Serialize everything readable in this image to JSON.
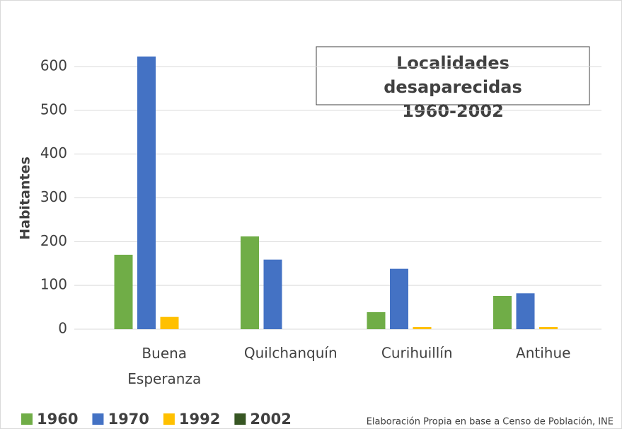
{
  "chart_data": {
    "type": "bar",
    "title": "Localidades desaparecidas 1960-2002",
    "y_label": "Habitantes",
    "source": "Elaboración Propia en base a Censo de  Población, INE",
    "categories": [
      "Buena Esperanza",
      "Quilchanquín",
      "Curihuillín",
      "Antihue"
    ],
    "series": [
      {
        "name": "1960",
        "color": "#70ad47",
        "values": [
          170,
          212,
          39,
          76
        ]
      },
      {
        "name": "1970",
        "color": "#4472c4",
        "values": [
          623,
          159,
          138,
          82
        ]
      },
      {
        "name": "1992",
        "color": "#ffc000",
        "values": [
          28,
          0,
          5,
          5
        ]
      },
      {
        "name": "2002",
        "color": "#375623",
        "values": [
          0,
          0,
          0,
          0
        ]
      }
    ],
    "ylim": [
      0,
      600
    ],
    "yticks": [
      0,
      100,
      200,
      300,
      400,
      500,
      600
    ],
    "grid": true,
    "legend": "bottom"
  }
}
